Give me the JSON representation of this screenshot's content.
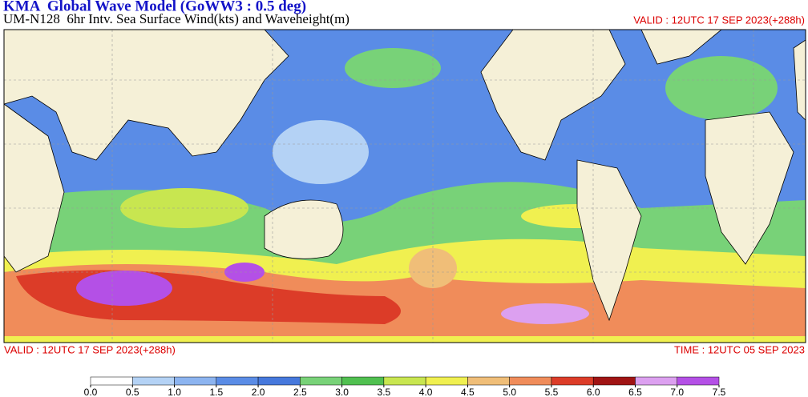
{
  "header": {
    "title": "KMA  Global Wave Model (GoWW3 : 0.5 deg)",
    "subtitle": "UM-N128  6hr Intv. Sea Surface Wind(kts) and Waveheight(m)",
    "valid_top": "VALID : 12UTC 17 SEP 2023(+288h)"
  },
  "footer": {
    "valid": "VALID : 12UTC 17 SEP 2023(+288h)",
    "time": "TIME : 12UTC 05 SEP 2023"
  },
  "colorbar": {
    "ticks": [
      {
        "value": 0,
        "label": "0.0"
      },
      0.5,
      {
        "value": 1,
        "label": "1.0"
      },
      1.5,
      {
        "value": 2,
        "label": "2.0"
      },
      2.5,
      {
        "value": 3,
        "label": "3.0"
      },
      3.5,
      {
        "value": 4,
        "label": "4.0"
      },
      4.5,
      {
        "value": 5,
        "label": "5.0"
      },
      5.5,
      {
        "value": 6,
        "label": "6.0"
      },
      6.5,
      {
        "value": 7,
        "label": "7.0"
      },
      7.5
    ],
    "colors": [
      "#ffffff",
      "#b4d2f5",
      "#8cb4f0",
      "#5a8ce6",
      "#4678dc",
      "#78d278",
      "#50c050",
      "#c8e650",
      "#f0f050",
      "#f0be78",
      "#f08c5a",
      "#dc3c28",
      "#a01414",
      "#dca0f0",
      "#b450e6"
    ]
  }
}
